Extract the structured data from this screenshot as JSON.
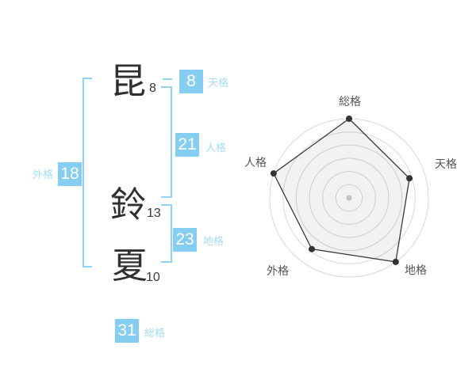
{
  "name_analysis": {
    "characters": [
      {
        "char": "昆",
        "strokes": "8"
      },
      {
        "char": "鈴",
        "strokes": "13"
      },
      {
        "char": "夏",
        "strokes": "10"
      }
    ],
    "kaku": {
      "tenkaku": {
        "label": "天格",
        "value": "8"
      },
      "jinkaku": {
        "label": "人格",
        "value": "21"
      },
      "chikaku": {
        "label": "地格",
        "value": "23"
      },
      "gaikaku": {
        "label": "外格",
        "value": "18"
      },
      "soukaku": {
        "label": "総格",
        "value": "31"
      }
    }
  },
  "chart_data": {
    "type": "radar",
    "axes": [
      "総格",
      "天格",
      "地格",
      "外格",
      "人格"
    ],
    "values": [
      100,
      80,
      100,
      80,
      100
    ],
    "max": 100,
    "rings": 6,
    "start_angle_deg": -90,
    "direction": "clockwise",
    "grid_shape": "circular",
    "legend": "none"
  },
  "colors": {
    "accent_blue": "#85CEF2",
    "label_blue": "#A6DBF7",
    "bracket_blue": "#8ED2F4",
    "grid_gray": "#D8D8D8",
    "center_dot_gray": "#C4C4C4",
    "line_dark": "#3A3A3A",
    "polygon_fill": "rgba(0,0,0,0.05)"
  }
}
